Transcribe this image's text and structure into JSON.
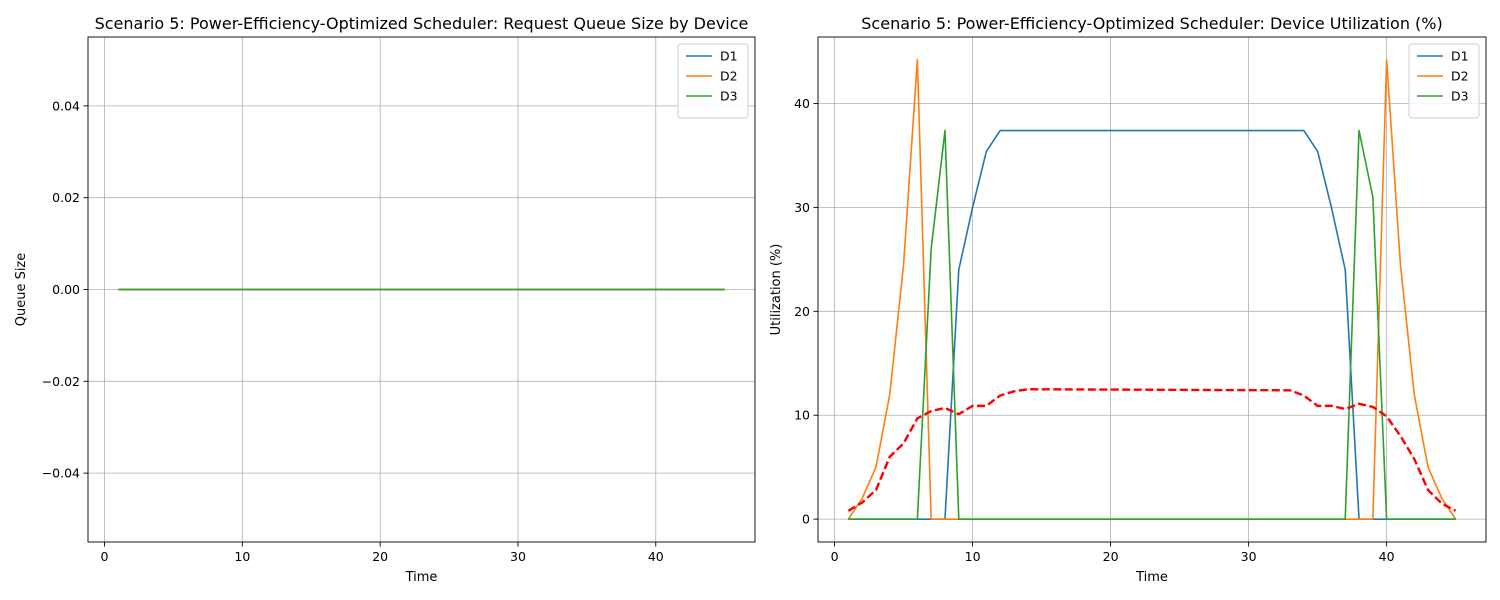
{
  "chart_data": [
    {
      "type": "line",
      "title": "Scenario 5: Power-Efficiency-Optimized Scheduler: Request Queue Size by Device",
      "xlabel": "Time",
      "ylabel": "Queue Size",
      "xlim": [
        -1.2,
        47.2
      ],
      "ylim": [
        -0.055,
        0.055
      ],
      "xticks": [
        0,
        10,
        20,
        30,
        40
      ],
      "yticks": [
        -0.04,
        -0.02,
        0.0,
        0.02,
        0.04
      ],
      "xtick_labels": [
        "0",
        "10",
        "20",
        "30",
        "40"
      ],
      "ytick_labels": [
        "−0.04",
        "−0.02",
        "0.00",
        "0.02",
        "0.04"
      ],
      "grid": true,
      "legend": "upper-right",
      "series": [
        {
          "name": "D1",
          "color": "#1f77b4",
          "x": [
            1,
            45
          ],
          "y": [
            0,
            0
          ]
        },
        {
          "name": "D2",
          "color": "#ff7f0e",
          "x": [
            1,
            45
          ],
          "y": [
            0,
            0
          ]
        },
        {
          "name": "D3",
          "color": "#2ca02c",
          "x": [
            1,
            45
          ],
          "y": [
            0,
            0
          ]
        }
      ]
    },
    {
      "type": "line",
      "title": "Scenario 5: Power-Efficiency-Optimized Scheduler: Device Utilization (%)",
      "xlabel": "Time",
      "ylabel": "Utilization (%)",
      "xlim": [
        -1.2,
        47.2
      ],
      "ylim": [
        -2.2,
        46.4
      ],
      "xticks": [
        0,
        10,
        20,
        30,
        40
      ],
      "yticks": [
        0,
        10,
        20,
        30,
        40
      ],
      "xtick_labels": [
        "0",
        "10",
        "20",
        "30",
        "40"
      ],
      "ytick_labels": [
        "0",
        "10",
        "20",
        "30",
        "40"
      ],
      "grid": true,
      "legend": "upper-right",
      "series": [
        {
          "name": "D1",
          "color": "#1f77b4",
          "x": [
            1,
            8,
            9,
            10,
            11,
            12,
            34,
            35,
            36,
            37,
            38,
            45
          ],
          "y": [
            0,
            0,
            24,
            30,
            35.4,
            37.4,
            37.4,
            35.4,
            30,
            24,
            0,
            0
          ]
        },
        {
          "name": "D2",
          "color": "#ff7f0e",
          "x": [
            1,
            2,
            3,
            4,
            5,
            6,
            7,
            39,
            40,
            41,
            42,
            43,
            44,
            45
          ],
          "y": [
            0,
            2,
            5,
            12,
            24.5,
            44.2,
            0,
            0,
            44.2,
            24.5,
            12,
            5,
            2,
            0
          ]
        },
        {
          "name": "D3",
          "color": "#2ca02c",
          "x": [
            1,
            6,
            7,
            8,
            9,
            37,
            38,
            39,
            40,
            45
          ],
          "y": [
            0,
            0,
            26,
            37.4,
            0,
            0,
            37.4,
            31,
            0,
            0
          ]
        },
        {
          "name": "",
          "color": "#ff0000",
          "dashed": true,
          "x": [
            1,
            2,
            3,
            4,
            5,
            6,
            7,
            8,
            9,
            10,
            11,
            12,
            13,
            14,
            33,
            34,
            35,
            36,
            37,
            38,
            39,
            40,
            41,
            42,
            43,
            44,
            45
          ],
          "y": [
            0.8,
            1.6,
            2.8,
            6,
            7.3,
            9.7,
            10.4,
            10.7,
            10.1,
            10.9,
            10.9,
            11.9,
            12.3,
            12.5,
            12.4,
            11.9,
            10.9,
            10.9,
            10.6,
            11.1,
            10.8,
            9.9,
            8,
            5.8,
            2.8,
            1.5,
            0.8
          ]
        }
      ]
    }
  ]
}
